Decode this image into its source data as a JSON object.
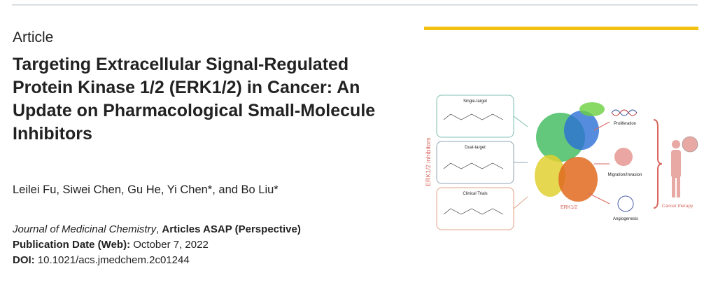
{
  "article_type": "Article",
  "title": "Targeting Extracellular Signal-Regulated Protein Kinase 1/2 (ERK1/2) in Cancer: An Update on Pharmacological Small-Molecule Inhibitors",
  "authors": "Leilei Fu, Siwei Chen, Gu He, Yi Chen*, and Bo Liu*",
  "journal": {
    "name": "Journal of Medicinal Chemistry",
    "section": "Articles ASAP (Perspective)"
  },
  "publication_date": {
    "label": "Publication Date (Web):",
    "value": "October 7, 2022"
  },
  "doi": {
    "label": "DOI:",
    "value": "10.1021/acs.jmedchem.2c01244"
  },
  "graphical_abstract": {
    "side_label": "ERK1/2 inhibitors",
    "boxes": [
      "Single-target",
      "Dual-target",
      "Clinical Trials"
    ],
    "center_label": "ERK1/2",
    "outcomes": [
      "Proliferation",
      "Migration/Invasion",
      "Angiogenesis"
    ],
    "therapy_label": "Cancer therapy"
  },
  "colors": {
    "accent_bar": "#f2c010",
    "abstract_red": "#d9675f",
    "teal": "#7fbfb0",
    "blue_gray": "#8fa6b5",
    "salmon": "#e2a487"
  }
}
